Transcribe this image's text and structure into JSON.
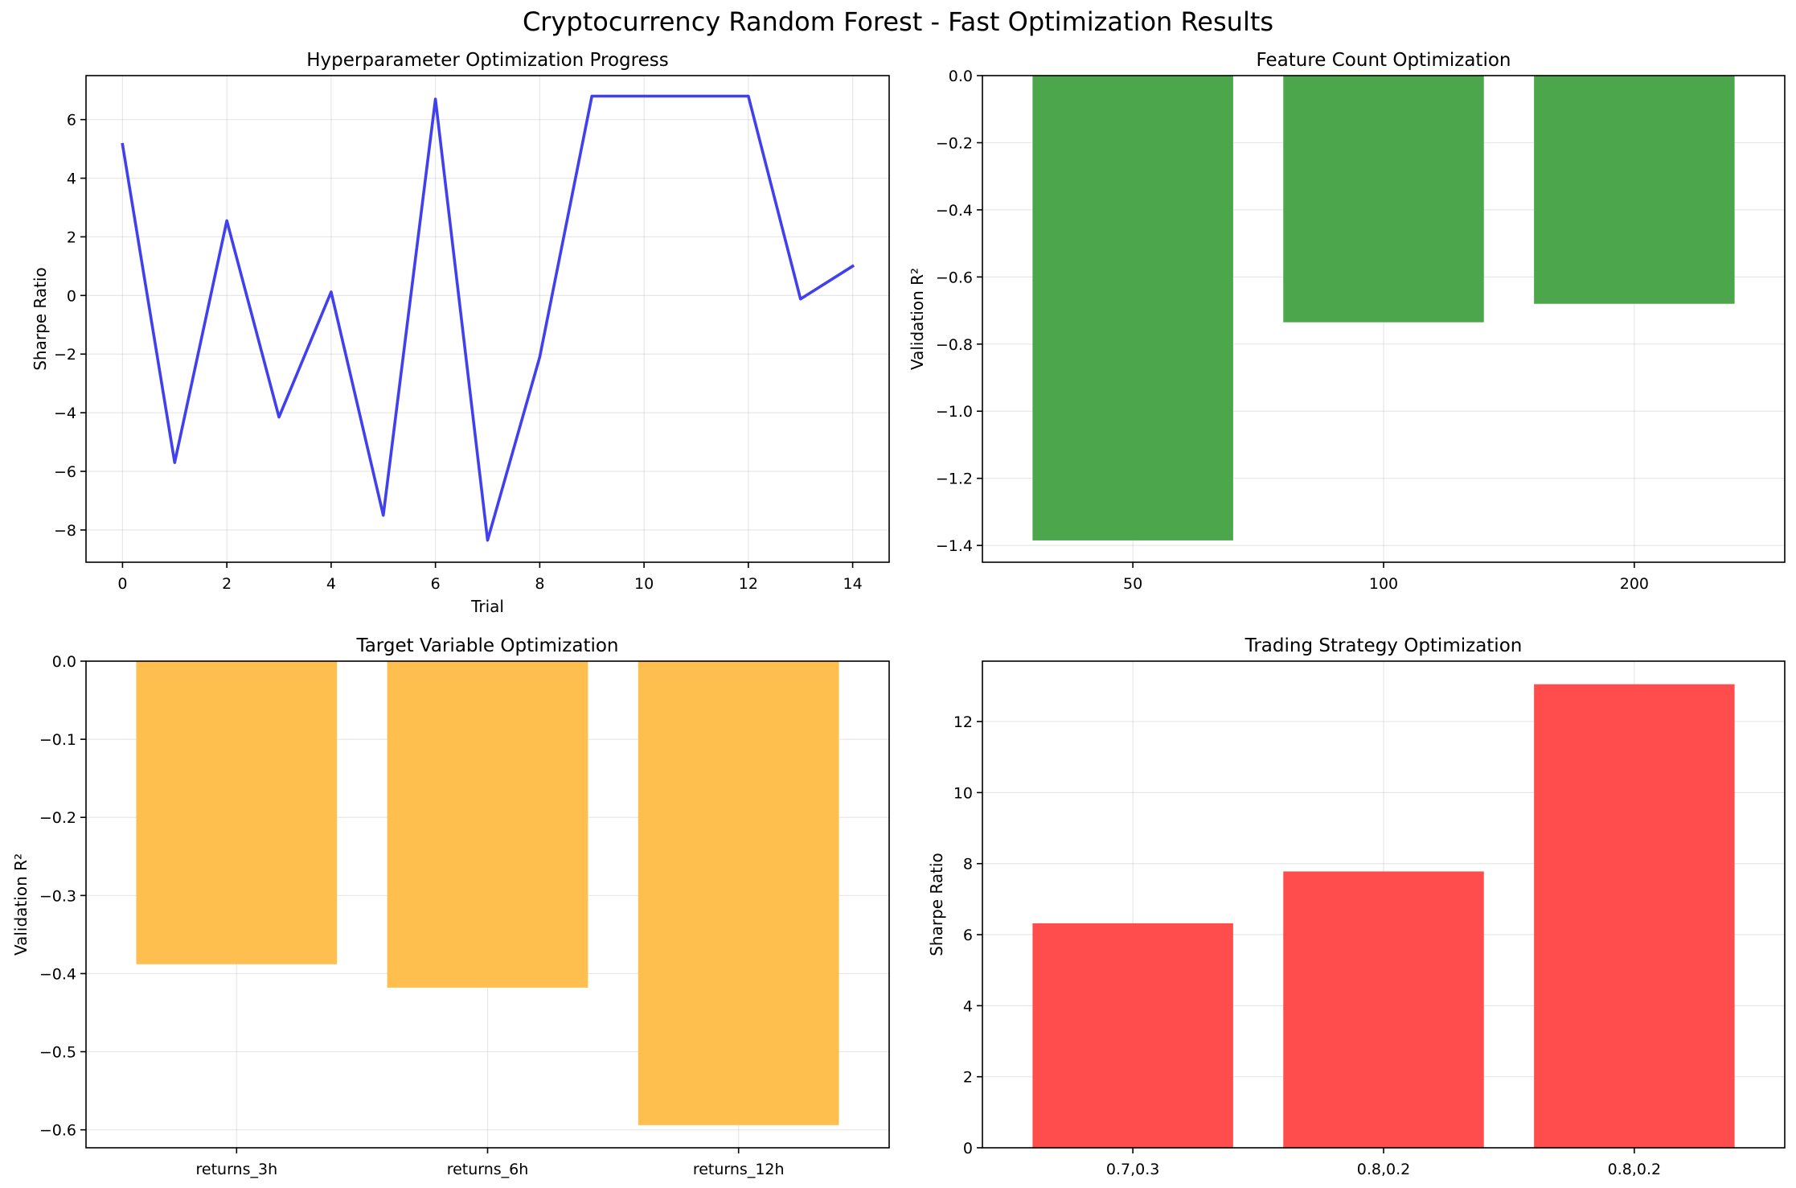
{
  "figure": {
    "title": "Cryptocurrency Random Forest - Fast Optimization Results"
  },
  "chart_data": [
    {
      "type": "line",
      "title": "Hyperparameter Optimization Progress",
      "xlabel": "Trial",
      "ylabel": "Sharpe Ratio",
      "x": [
        0,
        1,
        2,
        3,
        4,
        5,
        6,
        7,
        8,
        9,
        10,
        11,
        12,
        13,
        14
      ],
      "series": [
        {
          "values": [
            5.15,
            -5.7,
            2.55,
            -4.15,
            0.12,
            -7.5,
            6.7,
            -8.35,
            -2.1,
            6.8,
            6.8,
            6.8,
            6.8,
            -0.12,
            1.0
          ],
          "color": "#4040ef"
        }
      ],
      "xlim": [
        -0.7,
        14.7
      ],
      "ylim": [
        -9.1,
        7.5
      ],
      "xticks": [
        0,
        2,
        4,
        6,
        8,
        10,
        12,
        14
      ],
      "yticks": [
        -8,
        -6,
        -4,
        -2,
        0,
        2,
        4,
        6
      ],
      "ytick_labels": [
        "−8",
        "−6",
        "−4",
        "−2",
        "0",
        "2",
        "4",
        "6"
      ],
      "grid": true
    },
    {
      "type": "bar",
      "title": "Feature Count Optimization",
      "xlabel": "",
      "ylabel": "Validation R²",
      "categories": [
        "50",
        "100",
        "200"
      ],
      "values": [
        -1.385,
        -0.735,
        -0.68
      ],
      "color": "#4ca64c",
      "ylim": [
        -1.45,
        0
      ],
      "yticks": [
        -1.4,
        -1.2,
        -1.0,
        -0.8,
        -0.6,
        -0.4,
        -0.2,
        0.0
      ],
      "ytick_labels": [
        "−1.4",
        "−1.2",
        "−1.0",
        "−0.8",
        "−0.6",
        "−0.4",
        "−0.2",
        "0.0"
      ],
      "grid": true
    },
    {
      "type": "bar",
      "title": "Target Variable Optimization",
      "xlabel": "",
      "ylabel": "Validation R²",
      "categories": [
        "returns_3h",
        "returns_6h",
        "returns_12h"
      ],
      "values": [
        -0.388,
        -0.418,
        -0.594
      ],
      "color": "#ffbf4f",
      "ylim": [
        -0.623,
        0
      ],
      "yticks": [
        -0.6,
        -0.5,
        -0.4,
        -0.3,
        -0.2,
        -0.1,
        0.0
      ],
      "ytick_labels": [
        "−0.6",
        "−0.5",
        "−0.4",
        "−0.3",
        "−0.2",
        "−0.1",
        "0.0"
      ],
      "grid": true
    },
    {
      "type": "bar",
      "title": "Trading Strategy Optimization",
      "xlabel": "",
      "ylabel": "Sharpe Ratio",
      "categories": [
        "0.7,0.3",
        "0.8,0.2",
        "0.8,0.2"
      ],
      "values": [
        6.32,
        7.78,
        13.05
      ],
      "color": "#ff4d4d",
      "ylim": [
        0,
        13.7
      ],
      "yticks": [
        0,
        2,
        4,
        6,
        8,
        10,
        12
      ],
      "ytick_labels": [
        "0",
        "2",
        "4",
        "6",
        "8",
        "10",
        "12"
      ],
      "grid": true
    }
  ]
}
